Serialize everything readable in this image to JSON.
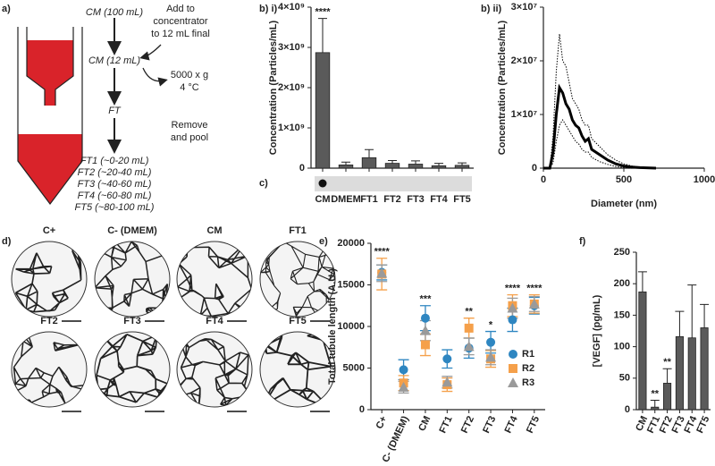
{
  "panel_a": {
    "label": "a)",
    "steps": [
      "CM (100 mL)",
      "CM (12 mL)",
      "FT"
    ],
    "fractions": [
      "FT1 (~0-20 mL)",
      "FT2 (~20-40 mL)",
      "FT3 (~40-60 mL)",
      "FT4 (~60-80 mL)",
      "FT5 (~80-100 mL)"
    ],
    "notes": {
      "add": [
        "Add to",
        "concentrator",
        "to 12 mL final"
      ],
      "spin": [
        "5000 x g",
        "4 °C"
      ],
      "pool": [
        "Remove",
        "and pool"
      ]
    }
  },
  "panel_c": {
    "label": "c)"
  },
  "panel_d": {
    "label": "d)",
    "images": [
      "C+",
      "C- (DMEM)",
      "CM",
      "FT1",
      "FT2",
      "FT3",
      "FT4",
      "FT5"
    ]
  },
  "chart_data": [
    {
      "label": "b) i)",
      "type": "bar",
      "y_label": "Concentration (Particles/mL)",
      "categories": [
        "CM",
        "DMEM",
        "FT1",
        "FT2",
        "FT3",
        "FT4",
        "FT5"
      ],
      "values": [
        2870000000,
        80000000,
        260000000,
        120000000,
        100000000,
        60000000,
        70000000
      ],
      "errors": [
        850000000,
        70000000,
        200000000,
        70000000,
        80000000,
        60000000,
        60000000
      ],
      "significance": [
        "****",
        null,
        null,
        null,
        null,
        null,
        null
      ],
      "color": "#5a5a5a",
      "ylim": [
        0,
        4000000000
      ],
      "yticks": [
        0,
        {
          "value": 1000000000,
          "label": "1×10⁹"
        },
        {
          "value": 2000000000,
          "label": "2×10⁹"
        },
        {
          "value": 3000000000,
          "label": "3×10⁹"
        },
        {
          "value": 4000000000,
          "label": "4×10⁹"
        }
      ]
    },
    {
      "label": "b) ii)",
      "type": "line",
      "x_label": "Diameter (nm)",
      "y_label": "Concentration (Particles/mL)",
      "x": [
        0,
        40,
        60,
        80,
        100,
        120,
        140,
        160,
        180,
        200,
        220,
        240,
        260,
        280,
        300,
        350,
        400,
        450,
        500,
        550,
        600,
        700
      ],
      "series": [
        {
          "color": "#000000",
          "line_style": "solid",
          "values": [
            0,
            0,
            3000000,
            10000000,
            15000000,
            14000000,
            12000000,
            11000000,
            9000000,
            8000000,
            7500000,
            6000000,
            5000000,
            5500000,
            3500000,
            2500000,
            1500000,
            800000,
            400000,
            200000,
            100000,
            0
          ]
        },
        {
          "color": "#000000",
          "line_style": "dotted",
          "values": [
            0,
            0,
            6000000,
            18000000,
            25000000,
            20000000,
            19000000,
            16000000,
            13000000,
            12000000,
            11000000,
            9000000,
            8000000,
            8000000,
            5500000,
            4000000,
            2500000,
            1500000,
            800000,
            400000,
            200000,
            0
          ]
        },
        {
          "color": "#000000",
          "line_style": "dotted",
          "values": [
            0,
            0,
            1000000,
            5000000,
            8000000,
            9000000,
            8000000,
            7000000,
            6000000,
            5000000,
            4500000,
            3500000,
            3000000,
            3000000,
            2000000,
            1200000,
            700000,
            300000,
            100000,
            0,
            0,
            0
          ]
        }
      ],
      "xlim": [
        0,
        1000
      ],
      "xticks": [
        0,
        500,
        1000
      ],
      "ylim": [
        0,
        30000000
      ],
      "yticks": [
        0,
        {
          "value": 10000000,
          "label": "1×10⁷"
        },
        {
          "value": 20000000,
          "label": "2×10⁷"
        },
        {
          "value": 30000000,
          "label": "3×10⁷"
        }
      ]
    },
    {
      "label": "e)",
      "type": "dot",
      "y_label": "Total tubule length (A.U.)",
      "categories": [
        "C+",
        "C- (DMEM)",
        "CM",
        "FT1",
        "FT2",
        "FT3",
        "FT4",
        "FT5"
      ],
      "series": [
        {
          "name": "R1",
          "color": "#2e86c1",
          "marker": "circle",
          "values": [
            16500,
            4800,
            11000,
            6100,
            7400,
            8100,
            10800,
            12500
          ],
          "errors": [
            900,
            1200,
            1500,
            1100,
            1200,
            1300,
            1400,
            1000
          ]
        },
        {
          "name": "R2",
          "color": "#f5a04a",
          "marker": "square",
          "values": [
            16300,
            3200,
            7800,
            3000,
            9800,
            6100,
            12500,
            12700
          ],
          "errors": [
            1900,
            900,
            1300,
            800,
            1200,
            1000,
            1300,
            1100
          ]
        },
        {
          "name": "R3",
          "color": "#9a9a9a",
          "marker": "triangle",
          "values": [
            16400,
            2700,
            9500,
            3300,
            7600,
            6300,
            12200,
            12700
          ],
          "errors": [
            1000,
            700,
            1200,
            700,
            1000,
            900,
            1200,
            900
          ]
        }
      ],
      "significance": [
        "****",
        null,
        "***",
        null,
        "**",
        "*",
        "****",
        "****"
      ],
      "legend": "right",
      "ylim": [
        0,
        20000
      ],
      "yticks": [
        0,
        5000,
        10000,
        15000,
        20000
      ]
    },
    {
      "label": "f)",
      "type": "bar",
      "y_label": "[VEGF] (pg/mL)",
      "categories": [
        "CM",
        "FT1",
        "FT2",
        "FT3",
        "FT4",
        "FT5"
      ],
      "values": [
        187,
        4,
        42,
        116,
        114,
        130
      ],
      "errors": [
        32,
        11,
        23,
        40,
        84,
        37
      ],
      "significance": [
        null,
        "**",
        "**",
        null,
        null,
        null
      ],
      "color": "#5a5a5a",
      "ylim": [
        0,
        250
      ],
      "yticks": [
        0,
        50,
        100,
        150,
        200,
        250
      ]
    }
  ]
}
